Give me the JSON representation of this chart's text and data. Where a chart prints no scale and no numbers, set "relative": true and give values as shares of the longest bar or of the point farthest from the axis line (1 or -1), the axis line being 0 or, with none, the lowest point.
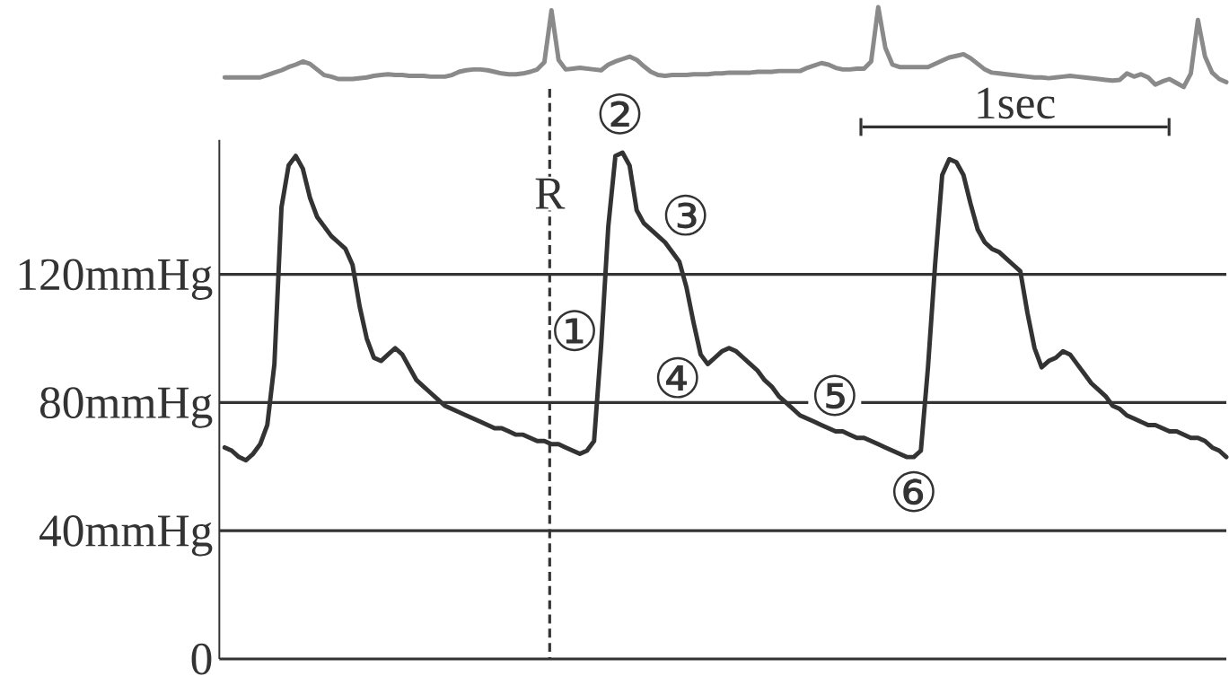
{
  "chart_data": [
    {
      "type": "line",
      "relative": true,
      "color": "#8a8a8a",
      "tick_labels": false,
      "categories": [
        null,
        null,
        null,
        null,
        null,
        null,
        null,
        null,
        null,
        null,
        null,
        null,
        null,
        null,
        null,
        null,
        null,
        null,
        null,
        null,
        null,
        null,
        null,
        null,
        null,
        null,
        null,
        null,
        null,
        null,
        null,
        null,
        null,
        null,
        null,
        null,
        null,
        null,
        null,
        null,
        null,
        null,
        null,
        null,
        null,
        null,
        null,
        null,
        null,
        null,
        null,
        null,
        null,
        null,
        null,
        null,
        null,
        null,
        null,
        null,
        null,
        null,
        null,
        null,
        null,
        null,
        null,
        null,
        null,
        null,
        null,
        null,
        null,
        null,
        null,
        null,
        null,
        null,
        null,
        null,
        null,
        null,
        null,
        null,
        null,
        null,
        null,
        null,
        null,
        null,
        null,
        null,
        null,
        null,
        null,
        null,
        null,
        null,
        null,
        null,
        null,
        null,
        null,
        null,
        null,
        null,
        null,
        null,
        null,
        null,
        null,
        null,
        null,
        null,
        null,
        null,
        null,
        null,
        null,
        null,
        null,
        null,
        null,
        null,
        null,
        null,
        null,
        null,
        null,
        null,
        null,
        null,
        null,
        null,
        null,
        null,
        null,
        null,
        null,
        null,
        null,
        null
      ],
      "values": [
        0.12,
        0.12,
        0.12,
        0.12,
        0.12,
        0.12,
        0.15,
        0.18,
        0.21,
        0.25,
        0.28,
        0.32,
        0.29,
        0.22,
        0.15,
        0.13,
        0.1,
        0.1,
        0.1,
        0.11,
        0.12,
        0.14,
        0.15,
        0.16,
        0.15,
        0.15,
        0.14,
        0.14,
        0.14,
        0.13,
        0.13,
        0.13,
        0.15,
        0.19,
        0.21,
        0.22,
        0.22,
        0.21,
        0.19,
        0.17,
        0.16,
        0.16,
        0.17,
        0.19,
        0.22,
        0.31,
        0.96,
        0.34,
        0.22,
        0.23,
        0.24,
        0.23,
        0.22,
        0.21,
        0.28,
        0.32,
        0.35,
        0.38,
        0.34,
        0.26,
        0.19,
        0.15,
        0.14,
        0.15,
        0.15,
        0.15,
        0.16,
        0.16,
        0.16,
        0.17,
        0.17,
        0.18,
        0.18,
        0.18,
        0.18,
        0.19,
        0.19,
        0.19,
        0.2,
        0.2,
        0.2,
        0.2,
        0.24,
        0.27,
        0.3,
        0.28,
        0.24,
        0.22,
        0.22,
        0.23,
        0.23,
        0.32,
        1.0,
        0.49,
        0.28,
        0.25,
        0.25,
        0.25,
        0.25,
        0.25,
        0.29,
        0.33,
        0.37,
        0.39,
        0.41,
        0.36,
        0.29,
        0.22,
        0.18,
        0.17,
        0.16,
        0.15,
        0.14,
        0.13,
        0.12,
        0.12,
        0.11,
        0.12,
        0.13,
        0.14,
        0.13,
        0.12,
        0.11,
        0.1,
        0.09,
        0.08,
        0.09,
        0.17,
        0.13,
        0.16,
        0.12,
        0.03,
        0.07,
        0.1,
        0.05,
        0.0,
        0.17,
        0.84,
        0.38,
        0.18,
        0.1,
        0.06
      ]
    },
    {
      "type": "line",
      "color": "#333333",
      "ylim": [
        0,
        162
      ],
      "tick_labels": "y",
      "grid": "y",
      "yticks": [
        0,
        {
          "value": 40,
          "label": "40mmHg"
        },
        {
          "value": 80,
          "label": "80mmHg"
        },
        {
          "value": 120,
          "label": "120mmHg"
        }
      ],
      "categories": [
        null,
        null,
        null,
        null,
        null,
        null,
        null,
        null,
        null,
        null,
        null,
        null,
        null,
        null,
        null,
        null,
        null,
        null,
        null,
        null,
        null,
        null,
        null,
        null,
        null,
        null,
        null,
        null,
        null,
        null,
        null,
        null,
        null,
        null,
        null,
        null,
        null,
        null,
        null,
        null,
        null,
        null,
        null,
        null,
        null,
        null,
        null,
        null,
        null,
        null,
        null,
        null,
        null,
        null,
        null,
        null,
        null,
        null,
        null,
        null,
        null,
        null,
        null,
        null,
        null,
        null,
        null,
        null,
        null,
        null,
        null,
        null,
        null,
        null,
        null,
        null,
        null,
        null,
        null,
        null,
        null,
        null,
        null,
        null,
        null,
        null,
        null,
        null,
        null,
        null,
        null,
        null,
        null,
        null,
        null,
        null,
        null,
        null,
        null,
        null,
        null,
        null,
        null,
        null,
        null,
        null,
        null,
        null,
        null,
        null,
        null,
        null,
        null,
        null,
        null,
        null,
        null,
        null,
        null,
        null,
        null,
        null,
        null,
        null,
        null,
        null,
        null,
        null,
        null,
        null,
        null,
        null,
        null,
        null,
        null,
        null,
        null,
        null,
        null,
        null,
        null,
        null
      ],
      "values": [
        66,
        65,
        63,
        62,
        64,
        67,
        73,
        92,
        141,
        154,
        157,
        153,
        144,
        138,
        135,
        132,
        130,
        128,
        123,
        110,
        100,
        94,
        93,
        95,
        97,
        95,
        91,
        87,
        85,
        83,
        81,
        79,
        78,
        77,
        76,
        75,
        74,
        73,
        72,
        72,
        71,
        70,
        70,
        69,
        68,
        68,
        67,
        67,
        66,
        65,
        64,
        65,
        68,
        98,
        135,
        157,
        158,
        154,
        140,
        136,
        134,
        132,
        130,
        127,
        124,
        116,
        105,
        95,
        92,
        94,
        96,
        97,
        96,
        94,
        92,
        90,
        87,
        85,
        82,
        80,
        78,
        76,
        75,
        74,
        73,
        72,
        71,
        71,
        70,
        69,
        69,
        68,
        67,
        66,
        65,
        64,
        63,
        63,
        65,
        91,
        123,
        151,
        156,
        155,
        151,
        142,
        134,
        130,
        128,
        127,
        125,
        123,
        121,
        108,
        97,
        91,
        93,
        94,
        96,
        95,
        92,
        89,
        86,
        84,
        82,
        79,
        78,
        76,
        75,
        74,
        73,
        73,
        72,
        71,
        71,
        70,
        69,
        69,
        68,
        66,
        65,
        63
      ],
      "annotations": [
        "①",
        {
          "text": "②",
          "y": 158
        },
        "③",
        "④",
        "⑤",
        {
          "text": "⑥",
          "y": 62
        },
        "R",
        "1sec"
      ]
    }
  ]
}
